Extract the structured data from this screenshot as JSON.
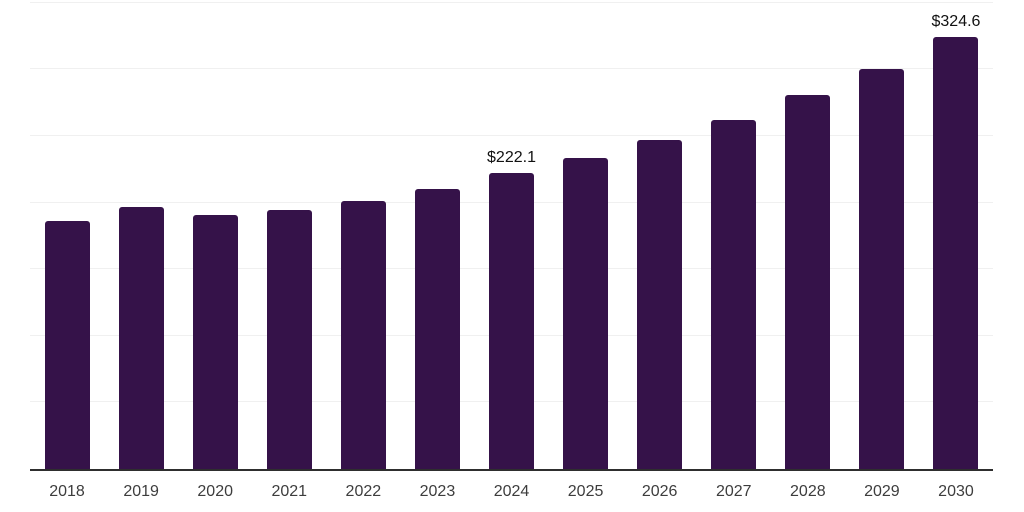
{
  "chart": {
    "background": "#ffffff",
    "bar_color": "#351249",
    "grid_color": "#f0f0f0",
    "axis_line_color": "#2e2e2e",
    "tick_label_color": "#3d3d3d",
    "annotation_color": "#111111"
  },
  "chart_data": {
    "type": "bar",
    "title": "",
    "xlabel": "",
    "ylabel": "",
    "categories": [
      "2018",
      "2019",
      "2020",
      "2021",
      "2022",
      "2023",
      "2024",
      "2025",
      "2026",
      "2027",
      "2028",
      "2029",
      "2030"
    ],
    "values": [
      186.4,
      196.8,
      190.6,
      194.4,
      201.2,
      210.1,
      222.1,
      233.5,
      247.1,
      262.2,
      280.9,
      300.4,
      324.6
    ],
    "ylim": [
      0,
      352
    ],
    "gridline_values": [
      50,
      100,
      150,
      200,
      250,
      300,
      350
    ],
    "grid": "horizontal",
    "legend": "none",
    "y_axis_tick_labels": "none",
    "annotations": [
      {
        "category": "2024",
        "text": "$222.1"
      },
      {
        "category": "2030",
        "text": "$324.6"
      }
    ]
  }
}
